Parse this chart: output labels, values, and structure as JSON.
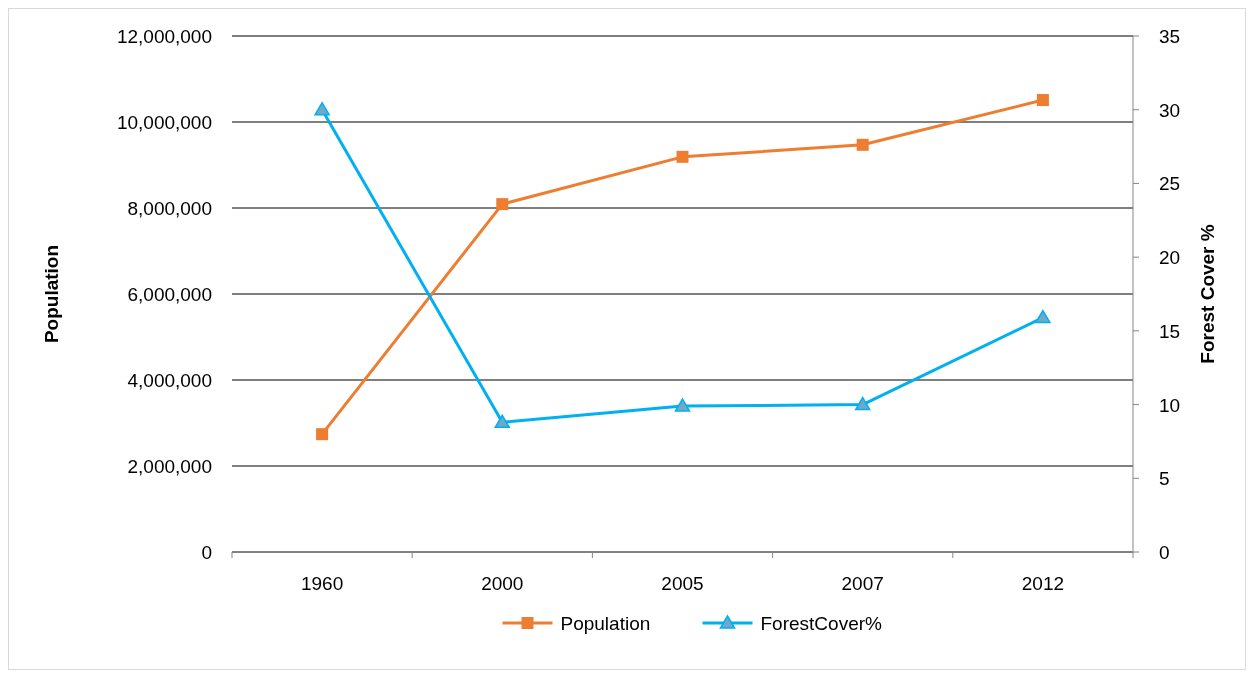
{
  "chart_data": {
    "type": "line",
    "categories": [
      "1960",
      "2000",
      "2005",
      "2007",
      "2012"
    ],
    "ylabel": "Population",
    "y2label": "Forest Cover %",
    "ylim": [
      0,
      12000000
    ],
    "yticks": [
      {
        "value": 0,
        "label": "0"
      },
      {
        "value": 2000000,
        "label": "2,000,000"
      },
      {
        "value": 4000000,
        "label": "4,000,000"
      },
      {
        "value": 6000000,
        "label": "6,000,000"
      },
      {
        "value": 8000000,
        "label": "8,000,000"
      },
      {
        "value": 10000000,
        "label": "10,000,000"
      },
      {
        "value": 12000000,
        "label": "12,000,000"
      }
    ],
    "y2lim": [
      0,
      35
    ],
    "y2ticks": [
      0,
      5,
      10,
      15,
      20,
      25,
      30,
      35
    ],
    "grid": "y",
    "legend": "bottom",
    "series": [
      {
        "name": "Population",
        "color": "#ed7d31",
        "marker": "square",
        "values": [
          2740000,
          8090000,
          9190000,
          9470000,
          10510000
        ]
      },
      {
        "name": "ForestCover%",
        "color": "#00b0f0",
        "marker": "triangle",
        "axis": "y2",
        "values": [
          30,
          8.8,
          9.9,
          10,
          15.9
        ]
      }
    ]
  }
}
